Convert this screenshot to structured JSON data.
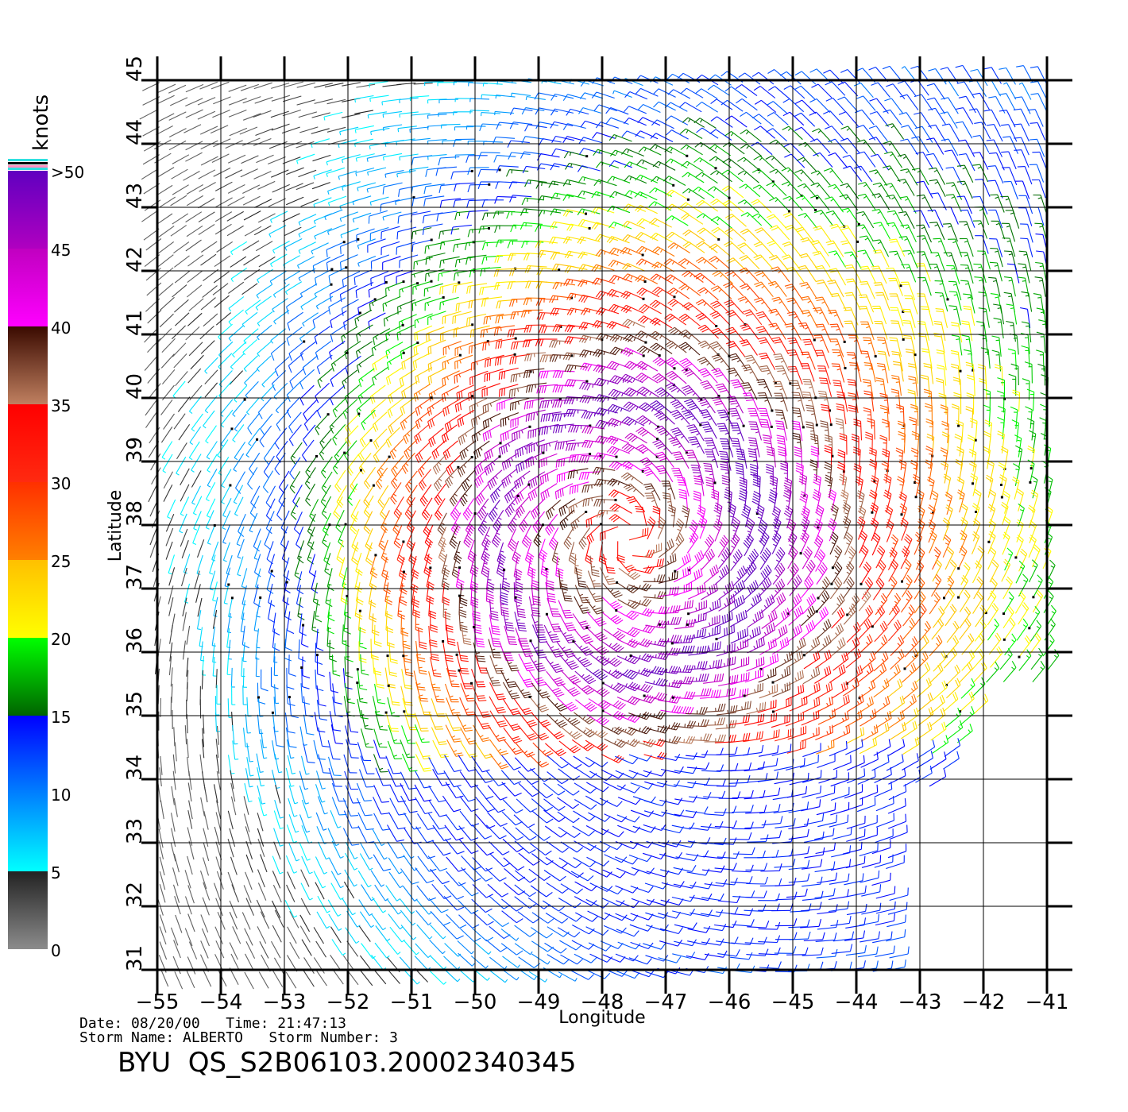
{
  "colorbar": {
    "title": "knots",
    "tick_labels": [
      "0",
      "5",
      "10",
      "15",
      "20",
      "25",
      "30",
      "35",
      "40",
      "45",
      ">50"
    ],
    "segments": [
      {
        "from": 0,
        "to": 5,
        "stops": [
          "#8c8c8c",
          "#222222"
        ]
      },
      {
        "from": 5,
        "to": 10,
        "stops": [
          "#00ffff",
          "#0080ff"
        ]
      },
      {
        "from": 10,
        "to": 15,
        "stops": [
          "#0080ff",
          "#0000ff"
        ]
      },
      {
        "from": 15,
        "to": 20,
        "stops": [
          "#006400",
          "#00ff00"
        ]
      },
      {
        "from": 20,
        "to": 25,
        "stops": [
          "#ffff00",
          "#ffc000"
        ]
      },
      {
        "from": 25,
        "to": 30,
        "stops": [
          "#ff8000",
          "#ff3000"
        ]
      },
      {
        "from": 30,
        "to": 35,
        "stops": [
          "#ff2a10",
          "#ff0000"
        ]
      },
      {
        "from": 35,
        "to": 40,
        "stops": [
          "#c08060",
          "#3a0a00"
        ]
      },
      {
        "from": 40,
        "to": 45,
        "stops": [
          "#ff00ff",
          "#c000c0"
        ]
      },
      {
        "from": 45,
        "to": 50,
        "stops": [
          "#b000c0",
          "#6000c0"
        ]
      }
    ]
  },
  "map": {
    "xlabel": "Longitude",
    "ylabel": "Latitude",
    "lon_range": [
      -55,
      -41
    ],
    "lat_range": [
      31,
      45
    ],
    "lon_ticks": [
      "−55",
      "−54",
      "−53",
      "−52",
      "−51",
      "−50",
      "−49",
      "−48",
      "−47",
      "−46",
      "−45",
      "−44",
      "−43",
      "−42",
      "−41"
    ],
    "lat_ticks": [
      "31",
      "32",
      "33",
      "34",
      "35",
      "36",
      "37",
      "38",
      "39",
      "40",
      "41",
      "42",
      "43",
      "44",
      "45"
    ],
    "storm_center": {
      "lon": -47.6,
      "lat": 37.8
    },
    "wind_field": "cyclonic wind barbs, strongest (40-50 knots) near the storm center"
  },
  "footer": {
    "line1": "Date: 08/20/00   Time: 21:47:13",
    "line2": "Storm Name: ALBERTO   Storm Number: 3",
    "title": "BYU  QS_S2B06103.20002340345"
  }
}
